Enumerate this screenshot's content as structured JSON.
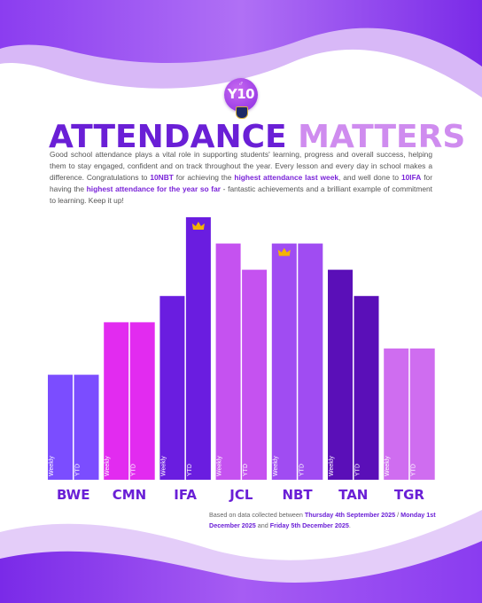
{
  "badge": {
    "text": "Y10"
  },
  "title": {
    "part1": "ATTENDANCE",
    "part2": "MATTERS"
  },
  "intro": {
    "t1": "Good school attendance plays a vital role in supporting students' learning, progress and overall success, helping them to stay engaged, confident and on track throughout the year. Every lesson and every day in school makes a difference. Congratulations to ",
    "b1": "10NBT",
    "t2": " for achieving the ",
    "b2": "highest attendance last week",
    "t3": ", and well done to ",
    "b3": "10IFA",
    "t4": " for having the ",
    "b4": "highest attendance for the year so far",
    "t5": " - fantastic achievements and a brilliant example of commitment to learning. Keep it up!"
  },
  "footnote": {
    "t1": "Based on data collected between ",
    "b1": "Thursday 4th September 2025",
    "t2": " / ",
    "b2": "Monday 1st December 2025",
    "t3": " and ",
    "b3": "Friday 5th December 2025",
    "t4": "."
  },
  "colors": {
    "BWE": "#7b4dff",
    "CMN": "#e22bf0",
    "IFA": "#6a1de0",
    "JCL": "#c552f0",
    "NBT": "#a04cf2",
    "TAN": "#5a0fb8",
    "TGR": "#cf6df0",
    "crown": "#f4b400"
  },
  "chart_data": {
    "type": "bar",
    "categories": [
      "BWE",
      "CMN",
      "IFA",
      "JCL",
      "NBT",
      "TAN",
      "TGR"
    ],
    "bar_labels": [
      "Weekly",
      "YTD"
    ],
    "series": [
      {
        "name": "Weekly",
        "values": [
          40,
          60,
          70,
          90,
          90,
          80,
          50
        ]
      },
      {
        "name": "YTD",
        "values": [
          40,
          60,
          100,
          80,
          90,
          70,
          50
        ]
      }
    ],
    "crowns": [
      {
        "category": "IFA",
        "bar": "YTD"
      },
      {
        "category": "NBT",
        "bar": "Weekly"
      }
    ],
    "ylim": [
      0,
      100
    ],
    "title": "",
    "xlabel": "",
    "ylabel": ""
  }
}
